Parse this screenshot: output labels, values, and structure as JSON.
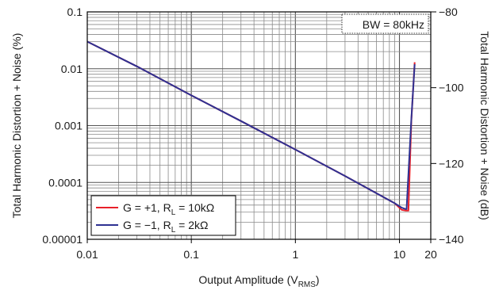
{
  "chart_data": {
    "type": "line",
    "title": "",
    "annotation": "BW = 80kHz",
    "xlabel": {
      "main": "Output Amplitude (V",
      "sub": "RMS",
      "end": ")"
    },
    "ylabel_left": "Total Harmonic Distortion + Noise (%)",
    "ylabel_right": "Total Harmonic Distortion + Noise (dB)",
    "x_scale": "log",
    "y_scale": "log",
    "xlim": [
      0.01,
      20
    ],
    "ylim": [
      1e-05,
      0.1
    ],
    "ylim_right_db": [
      -140,
      -80
    ],
    "x_ticks": [
      {
        "value": 0.01,
        "label": "0.01"
      },
      {
        "value": 0.1,
        "label": "0.1"
      },
      {
        "value": 1,
        "label": "1"
      },
      {
        "value": 10,
        "label": "10"
      },
      {
        "value": 20,
        "label": "20"
      }
    ],
    "y_ticks_left": [
      {
        "value": 0.1,
        "label": "0.1"
      },
      {
        "value": 0.01,
        "label": "0.01"
      },
      {
        "value": 0.001,
        "label": "0.001"
      },
      {
        "value": 0.0001,
        "label": "0.0001"
      },
      {
        "value": 1e-05,
        "label": "0.00001"
      }
    ],
    "y_ticks_right": [
      {
        "value": -80,
        "label": "−80"
      },
      {
        "value": -100,
        "label": "−100"
      },
      {
        "value": -120,
        "label": "−120"
      },
      {
        "value": -140,
        "label": "−140"
      }
    ],
    "grid": true,
    "legend": {
      "placement": "bottom-left"
    },
    "series": [
      {
        "legend": {
          "main": "G = +1, R",
          "sub": "L",
          "end": " = 10kΩ"
        },
        "color": "#e8202a",
        "x": [
          0.01,
          0.03,
          0.1,
          0.3,
          1,
          3,
          9,
          10.5,
          11.5,
          12.2,
          13,
          14
        ],
        "y": [
          0.03,
          0.011,
          0.0034,
          0.0012,
          0.00038,
          0.00013,
          4.3e-05,
          3.3e-05,
          3.2e-05,
          3.2e-05,
          0.0012,
          0.013
        ]
      },
      {
        "legend": {
          "main": "G = −1, R",
          "sub": "L",
          "end": " = 2kΩ"
        },
        "color": "#2e3192",
        "x": [
          0.01,
          0.03,
          0.1,
          0.3,
          1,
          3,
          9,
          10.5,
          11.5,
          11.7,
          13,
          14
        ],
        "y": [
          0.03,
          0.011,
          0.0034,
          0.0012,
          0.00038,
          0.00013,
          4.3e-05,
          3.6e-05,
          3.4e-05,
          3.4e-05,
          0.0013,
          0.012
        ]
      }
    ]
  }
}
